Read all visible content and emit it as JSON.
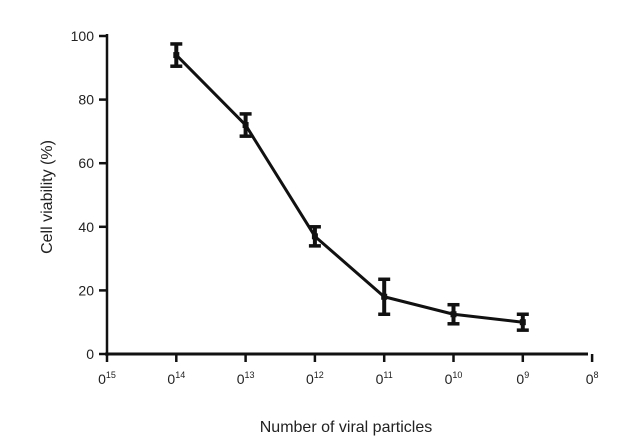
{
  "chart_data": {
    "type": "line",
    "title": "",
    "xlabel": "Number of viral particles",
    "ylabel": "Cell viability (%)",
    "x_ticks": [
      {
        "base": "0",
        "exp": "15"
      },
      {
        "base": "0",
        "exp": "14"
      },
      {
        "base": "0",
        "exp": "13"
      },
      {
        "base": "0",
        "exp": "12"
      },
      {
        "base": "0",
        "exp": "11"
      },
      {
        "base": "0",
        "exp": "10"
      },
      {
        "base": "0",
        "exp": "9"
      },
      {
        "base": "0",
        "exp": "8"
      }
    ],
    "y_ticks": [
      "0",
      "20",
      "40",
      "60",
      "80",
      "100"
    ],
    "ylim": [
      0,
      100
    ],
    "grid": false,
    "legend": "none",
    "colors": {
      "line": "#111111",
      "axis": "#111111",
      "text": "#222222"
    },
    "series": [
      {
        "x_tick_index": [
          1,
          2,
          3,
          4,
          5,
          6
        ],
        "values": [
          94,
          72,
          37,
          18,
          12.5,
          10
        ],
        "error": [
          3.5,
          3.5,
          3,
          5.5,
          3,
          2.5
        ]
      }
    ]
  }
}
